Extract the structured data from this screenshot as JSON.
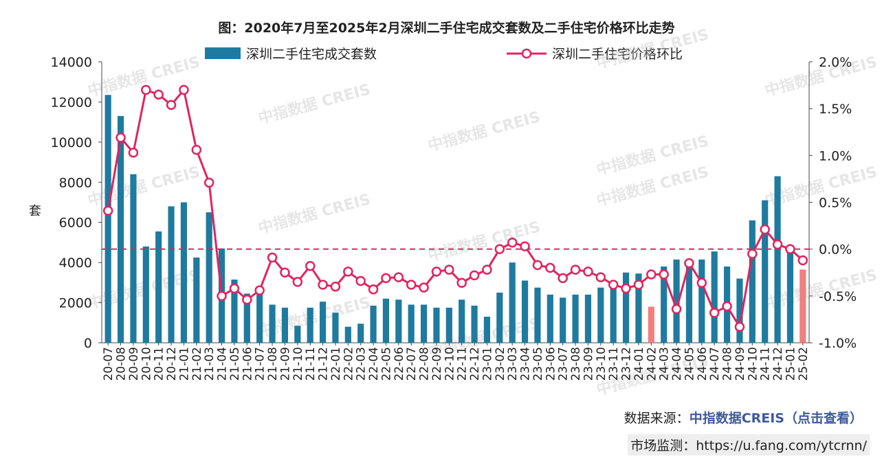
{
  "title": "图：2020年7月至2025年2月深圳二手住宅成交套数及二手住宅价格环比走势",
  "legend": {
    "bar_label": "深圳二手住宅成交套数",
    "line_label": "深圳二手住宅价格环比"
  },
  "watermark": "中指数据 CREIS",
  "footer": {
    "source_prefix": "数据来源：",
    "source_link": "中指数据CREIS（点击查看）",
    "monitor_prefix": "市场监测：",
    "monitor_link": "https://u.fang.com/ytcrnn/"
  },
  "colors": {
    "bar": "#1f7aa0",
    "bar_highlight": "#f08080",
    "line": "#e0245e",
    "zero_line": "#e0245e"
  },
  "chart_data": {
    "type": "bar+line",
    "title": "图：2020年7月至2025年2月深圳二手住宅成交套数及二手住宅价格环比走势",
    "ylabel": "套",
    "ylim": [
      0,
      14000
    ],
    "yticks": [
      "0",
      "2000",
      "4000",
      "6000",
      "8000",
      "10000",
      "12000",
      "14000"
    ],
    "y2lim": [
      -1.0,
      2.0
    ],
    "y2ticks": [
      "-1.0%",
      "-0.5%",
      "0.0%",
      "0.5%",
      "1.0%",
      "1.5%",
      "2.0%"
    ],
    "categories": [
      "20-07",
      "20-08",
      "20-09",
      "20-10",
      "20-11",
      "20-12",
      "21-01",
      "21-02",
      "21-03",
      "21-04",
      "21-05",
      "21-06",
      "21-07",
      "21-08",
      "21-09",
      "21-10",
      "21-11",
      "21-12",
      "22-01",
      "22-02",
      "22-03",
      "22-04",
      "22-05",
      "22-06",
      "22-07",
      "22-08",
      "22-09",
      "22-10",
      "22-11",
      "22-12",
      "23-01",
      "23-02",
      "23-03",
      "23-04",
      "23-05",
      "23-06",
      "23-07",
      "23-08",
      "23-09",
      "23-10",
      "23-11",
      "23-12",
      "24-01",
      "24-02",
      "24-03",
      "24-04",
      "24-05",
      "24-06",
      "24-07",
      "24-08",
      "24-09",
      "24-10",
      "24-11",
      "24-12",
      "25-01",
      "25-02"
    ],
    "series": [
      {
        "name": "深圳二手住宅成交套数",
        "type": "bar",
        "axis": "left",
        "values": [
          12350,
          11300,
          8400,
          4800,
          5550,
          6800,
          7000,
          4250,
          6500,
          4700,
          3150,
          2450,
          2400,
          1900,
          1750,
          850,
          1750,
          2050,
          1500,
          800,
          950,
          1850,
          2200,
          2150,
          1900,
          1900,
          1750,
          1750,
          2150,
          1850,
          1300,
          2500,
          4000,
          3100,
          2750,
          2400,
          2250,
          2400,
          2400,
          2750,
          2850,
          3500,
          3450,
          1800,
          3800,
          4150,
          4150,
          4150,
          4550,
          3800,
          3200,
          6100,
          7100,
          8300,
          4600,
          3650
        ],
        "highlight_indices": [
          43,
          55
        ]
      },
      {
        "name": "深圳二手住宅价格环比",
        "type": "line",
        "axis": "right",
        "values": [
          0.41,
          1.19,
          1.03,
          1.7,
          1.65,
          1.54,
          1.7,
          1.06,
          0.71,
          -0.5,
          -0.42,
          -0.54,
          -0.44,
          -0.09,
          -0.25,
          -0.35,
          -0.18,
          -0.38,
          -0.4,
          -0.24,
          -0.34,
          -0.43,
          -0.31,
          -0.3,
          -0.38,
          -0.41,
          -0.24,
          -0.22,
          -0.36,
          -0.28,
          -0.22,
          0.0,
          0.07,
          0.03,
          -0.17,
          -0.2,
          -0.31,
          -0.22,
          -0.24,
          -0.3,
          -0.38,
          -0.42,
          -0.38,
          -0.27,
          -0.27,
          -0.64,
          -0.15,
          -0.36,
          -0.68,
          -0.61,
          -0.83,
          -0.05,
          0.21,
          0.05,
          0.0,
          -0.12
        ]
      }
    ],
    "reference_line": {
      "axis": "right",
      "value": 0.0,
      "style": "dashed"
    },
    "grid": false,
    "legend_position": "top"
  }
}
